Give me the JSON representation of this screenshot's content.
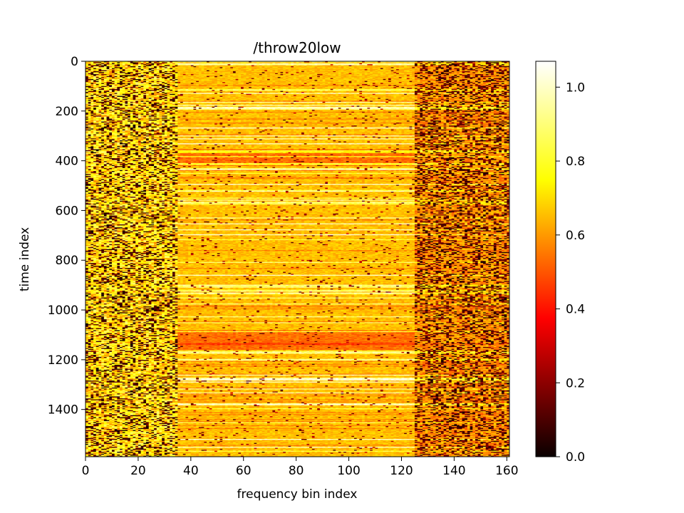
{
  "chart_data": {
    "type": "heatmap",
    "title": "/throw20low",
    "xlabel": "frequency bin index",
    "ylabel": "time index",
    "xlim": [
      0,
      161
    ],
    "ylim": [
      1590,
      0
    ],
    "x_ticks": [
      0,
      20,
      40,
      60,
      80,
      100,
      120,
      140,
      160
    ],
    "y_ticks": [
      0,
      200,
      400,
      600,
      800,
      1000,
      1200,
      1400
    ],
    "colormap": "hot",
    "colorbar": {
      "range": [
        0.0,
        1.07
      ],
      "ticks": [
        0.0,
        0.2,
        0.4,
        0.6,
        0.8,
        1.0
      ],
      "tick_labels": [
        "0.0",
        "0.2",
        "0.4",
        "0.6",
        "0.8",
        "1.0"
      ]
    },
    "grid": false,
    "description_of_pattern": {
      "low_bins_0_35": "highly noisy, mix of bright yellow and black",
      "mid_bins_35_125": "mostly orange 0.55-0.75 with horizontal yellow streaks",
      "high_bins_125_161": "darker, noisy black/orange speckle",
      "darker_bands_time": [
        [
          350,
          420
        ],
        [
          1080,
          1160
        ]
      ]
    }
  }
}
